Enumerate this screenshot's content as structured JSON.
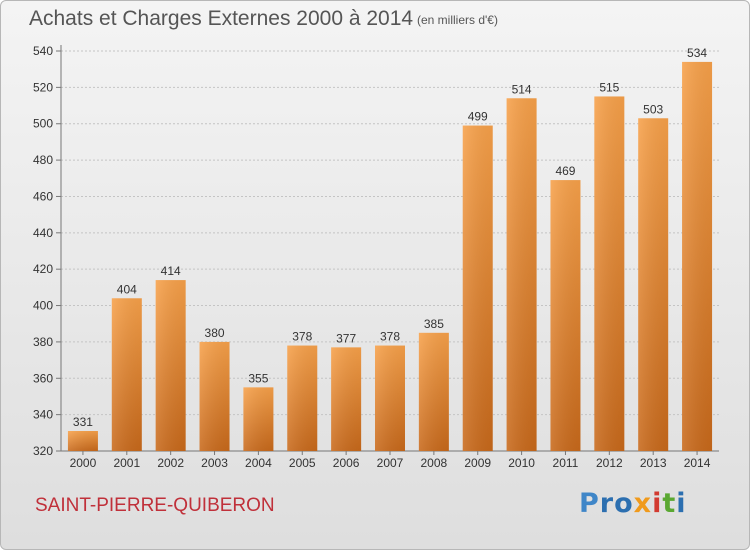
{
  "chart_data": {
    "type": "bar",
    "title": "Achats et Charges Externes 2000 à 2014",
    "subtitle": "(en milliers d'€)",
    "categories": [
      "2000",
      "2001",
      "2002",
      "2003",
      "2004",
      "2005",
      "2006",
      "2007",
      "2008",
      "2009",
      "2010",
      "2011",
      "2012",
      "2013",
      "2014"
    ],
    "values": [
      331,
      404,
      414,
      380,
      355,
      378,
      377,
      378,
      385,
      499,
      514,
      469,
      515,
      503,
      534
    ],
    "ylim": [
      320,
      540
    ],
    "yticks": [
      320,
      340,
      360,
      380,
      400,
      420,
      440,
      460,
      480,
      500,
      520,
      540
    ],
    "grid": true,
    "bar_color": "#f28e2b"
  },
  "commune": "SAINT-PIERRE-QUIBERON",
  "logo": {
    "p1": "P",
    "p2": "ro",
    "p3": "x",
    "p4": "i",
    "p5": "t",
    "p6": "i"
  }
}
